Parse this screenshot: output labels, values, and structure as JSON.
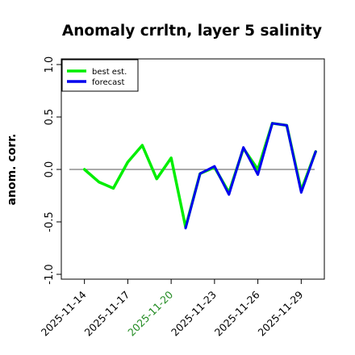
{
  "chart_data": {
    "type": "line",
    "title": "Anomaly crrltn, layer 5 salinity",
    "xlabel": "",
    "ylabel": "anom. corr.",
    "ylim": [
      -1.0,
      1.0
    ],
    "yticks": [
      -1.0,
      -0.5,
      0.0,
      0.5,
      1.0
    ],
    "ytick_labels": [
      "-1.0",
      "-0.5",
      "0.0",
      "0.5",
      "1.0"
    ],
    "x": [
      0,
      1,
      2,
      3,
      4,
      5,
      6,
      7,
      8,
      9,
      10,
      11,
      12,
      13,
      14,
      15
    ],
    "xticks": [
      1,
      4,
      7,
      10,
      13,
      16
    ],
    "xtick_labels": [
      "2025-11-14",
      "2025-11-17",
      "2025-11-20",
      "2025-11-23",
      "2025-11-26",
      "2025-11-29"
    ],
    "xtick_colors": [
      "#000000",
      "#000000",
      "#228B22",
      "#000000",
      "#000000",
      "#000000"
    ],
    "xlim": [
      -0.6,
      17.6
    ],
    "reference_line": 0.0,
    "legend_placement": "top-left",
    "grid": false,
    "series": [
      {
        "name": "best est.",
        "color": "#00ee00",
        "values": [
          0.0,
          -0.12,
          -0.18,
          0.07,
          0.23,
          -0.09,
          0.11,
          -0.55,
          -0.04,
          0.02,
          -0.22,
          0.2,
          0.0,
          0.44,
          0.42,
          -0.2,
          0.17
        ],
        "x": [
          1,
          2,
          3,
          4,
          5,
          6,
          7,
          8,
          9,
          10,
          11,
          12,
          13,
          14,
          15,
          16,
          17
        ]
      },
      {
        "name": "forecast",
        "color": "#0000ee",
        "values": [
          -0.56,
          -0.04,
          0.03,
          -0.24,
          0.21,
          -0.05,
          0.44,
          0.42,
          -0.22,
          0.17
        ],
        "x": [
          8,
          9,
          10,
          11,
          12,
          13,
          14,
          15,
          16,
          17
        ]
      }
    ]
  }
}
